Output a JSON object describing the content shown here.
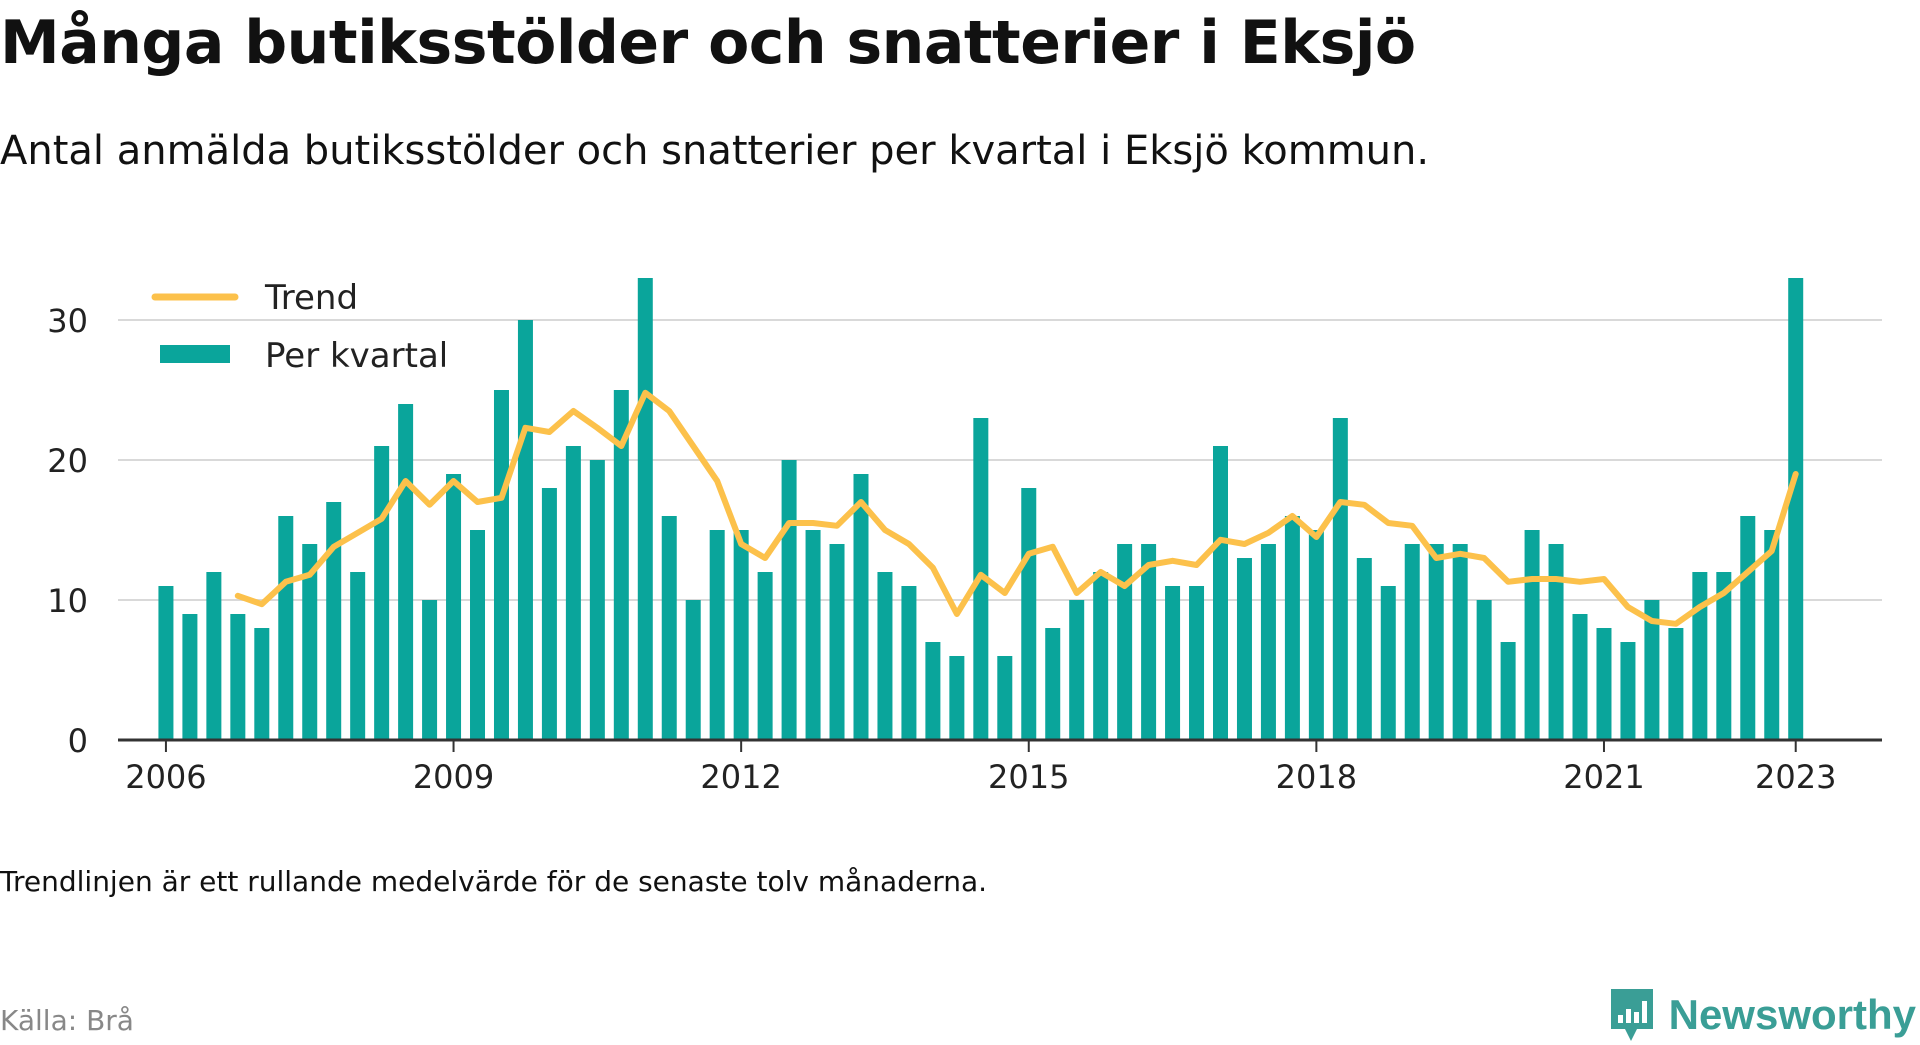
{
  "title": "Många butiksstölder och snatterier i Eksjö",
  "subtitle": "Antal anmälda butiksstölder och snatterier per kvartal i Eksjö kommun.",
  "note": "Trendlinjen är ett rullande medelvärde för de senaste tolv månaderna.",
  "source": "Källa: Brå",
  "brand": {
    "name": "Newsworthy",
    "icon": "newsworthy-logo-icon",
    "color": "#3a9e96"
  },
  "chart_data": {
    "type": "bar",
    "x_range": [
      2005.5,
      2023.9
    ],
    "ylim": [
      0,
      35
    ],
    "yticks": [
      0,
      10,
      20,
      30
    ],
    "xticks": [
      "2006",
      "2009",
      "2012",
      "2015",
      "2018",
      "2021",
      "2023"
    ],
    "grid": true,
    "legend_position": "top-left",
    "bar_color": "#0aa59b",
    "trend_color": "#fcc14b",
    "series": [
      {
        "name": "Per kvartal",
        "x": [
          2006.0,
          2006.25,
          2006.5,
          2006.75,
          2007.0,
          2007.25,
          2007.5,
          2007.75,
          2008.0,
          2008.25,
          2008.5,
          2008.75,
          2009.0,
          2009.25,
          2009.5,
          2009.75,
          2010.0,
          2010.25,
          2010.5,
          2010.75,
          2011.0,
          2011.25,
          2011.5,
          2011.75,
          2012.0,
          2012.25,
          2012.5,
          2012.75,
          2013.0,
          2013.25,
          2013.5,
          2013.75,
          2014.0,
          2014.25,
          2014.5,
          2014.75,
          2015.0,
          2015.25,
          2015.5,
          2015.75,
          2016.0,
          2016.25,
          2016.5,
          2016.75,
          2017.0,
          2017.25,
          2017.5,
          2017.75,
          2018.0,
          2018.25,
          2018.5,
          2018.75,
          2019.0,
          2019.25,
          2019.5,
          2019.75,
          2020.0,
          2020.25,
          2020.5,
          2020.75,
          2021.0,
          2021.25,
          2021.5,
          2021.75,
          2022.0,
          2022.25,
          2022.5,
          2022.75,
          2023.0
        ],
        "values": [
          11,
          9,
          12,
          9,
          8,
          16,
          14,
          17,
          12,
          21,
          24,
          10,
          19,
          15,
          25,
          30,
          18,
          21,
          20,
          25,
          33,
          16,
          10,
          15,
          15,
          12,
          20,
          15,
          14,
          19,
          12,
          11,
          7,
          6,
          23,
          6,
          18,
          8,
          10,
          12,
          14,
          14,
          11,
          11,
          21,
          13,
          14,
          16,
          15,
          23,
          13,
          11,
          14,
          14,
          14,
          10,
          7,
          15,
          14,
          9,
          8,
          7,
          10,
          8,
          12,
          12,
          16,
          15,
          33
        ]
      },
      {
        "name": "Trend",
        "x": [
          2006.75,
          2007.0,
          2007.25,
          2007.5,
          2007.75,
          2008.0,
          2008.25,
          2008.5,
          2008.75,
          2009.0,
          2009.25,
          2009.5,
          2009.75,
          2010.0,
          2010.25,
          2010.5,
          2010.75,
          2011.0,
          2011.25,
          2011.5,
          2011.75,
          2012.0,
          2012.25,
          2012.5,
          2012.75,
          2013.0,
          2013.25,
          2013.5,
          2013.75,
          2014.0,
          2014.25,
          2014.5,
          2014.75,
          2015.0,
          2015.25,
          2015.5,
          2015.75,
          2016.0,
          2016.25,
          2016.5,
          2016.75,
          2017.0,
          2017.25,
          2017.5,
          2017.75,
          2018.0,
          2018.25,
          2018.5,
          2018.75,
          2019.0,
          2019.25,
          2019.5,
          2019.75,
          2020.0,
          2020.25,
          2020.5,
          2020.75,
          2021.0,
          2021.25,
          2021.5,
          2021.75,
          2022.0,
          2022.25,
          2022.5,
          2022.75,
          2023.0
        ],
        "values": [
          10.3,
          9.7,
          11.3,
          11.8,
          13.8,
          14.8,
          15.8,
          18.5,
          16.8,
          18.5,
          17.0,
          17.3,
          22.3,
          22.0,
          23.5,
          22.3,
          21.0,
          24.8,
          23.5,
          21.0,
          18.5,
          14.0,
          13.0,
          15.5,
          15.5,
          15.3,
          17.0,
          15.0,
          14.0,
          12.3,
          9.0,
          11.8,
          10.5,
          13.3,
          13.8,
          10.5,
          12.0,
          11.0,
          12.5,
          12.8,
          12.5,
          14.3,
          14.0,
          14.8,
          16.0,
          14.5,
          17.0,
          16.8,
          15.5,
          15.3,
          13.0,
          13.3,
          13.0,
          11.3,
          11.5,
          11.5,
          11.3,
          11.5,
          9.5,
          8.5,
          8.3,
          9.5,
          10.5,
          12.0,
          13.5,
          19.0
        ]
      }
    ]
  }
}
